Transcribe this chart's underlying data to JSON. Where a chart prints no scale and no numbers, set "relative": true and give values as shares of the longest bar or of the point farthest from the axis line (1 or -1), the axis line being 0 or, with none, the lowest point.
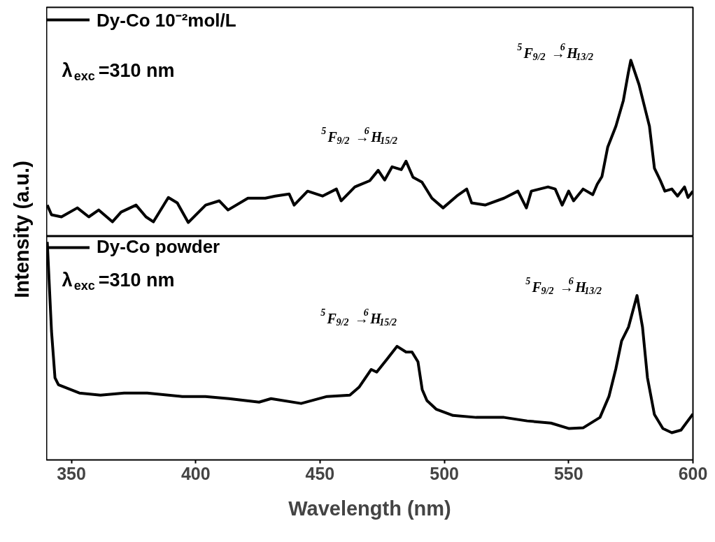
{
  "chart_data": [
    {
      "type": "line",
      "ylabel": "Intensity (a.u.)",
      "relative": true,
      "xlim": [
        340,
        600
      ],
      "tick_labels": false,
      "grid": false,
      "legend": "top left",
      "marker": "none",
      "line_style": "solid",
      "x": [
        340.3,
        342,
        346,
        352.4,
        357,
        361,
        366.5,
        370,
        376,
        380,
        383,
        389,
        392.6,
        397,
        404,
        409.5,
        413,
        421,
        428,
        432,
        437.6,
        439.6,
        445,
        451,
        456.6,
        458.5,
        464,
        470,
        473.4,
        476,
        479,
        482.7,
        484.6,
        487.4,
        491,
        495,
        499.5,
        505,
        509,
        511,
        516.4,
        524,
        529.6,
        533,
        535,
        541.7,
        544.6,
        547.4,
        550,
        552,
        555.8,
        559.7,
        561.5,
        563.4,
        565.7,
        569,
        572,
        574,
        575,
        578.3,
        581.1,
        582.5,
        584.5,
        586.8,
        588.7,
        591.5,
        593.8,
        596.6,
        598,
        600
      ],
      "series": [
        {
          "name": "Dy-Co 10⁻²mol/L",
          "color": "#000000",
          "values": [
            0.178,
            0.123,
            0.111,
            0.162,
            0.111,
            0.15,
            0.083,
            0.138,
            0.178,
            0.111,
            0.083,
            0.221,
            0.19,
            0.079,
            0.178,
            0.202,
            0.15,
            0.217,
            0.217,
            0.229,
            0.241,
            0.178,
            0.257,
            0.229,
            0.269,
            0.202,
            0.281,
            0.316,
            0.375,
            0.32,
            0.395,
            0.379,
            0.427,
            0.336,
            0.308,
            0.217,
            0.162,
            0.229,
            0.269,
            0.19,
            0.178,
            0.217,
            0.257,
            0.162,
            0.257,
            0.281,
            0.269,
            0.178,
            0.257,
            0.202,
            0.269,
            0.237,
            0.296,
            0.34,
            0.506,
            0.625,
            0.771,
            0.929,
            1.0,
            0.862,
            0.704,
            0.625,
            0.387,
            0.32,
            0.257,
            0.269,
            0.229,
            0.281,
            0.221,
            0.257
          ]
        }
      ],
      "annotations": [
        "λ$_{exc}$=310 nm",
        "$^{5}$F$_{9/2}$→$^{6}$H$_{15/2}$",
        "$^{5}$F$_{9/2}$→$^{6}$H$_{13/2}$"
      ]
    },
    {
      "type": "line",
      "xlabel": "Wavelength (nm)",
      "relative": true,
      "xlim": [
        340,
        600
      ],
      "xticks": [
        350,
        400,
        450,
        500,
        550,
        600
      ],
      "tick_labels": "x",
      "grid": false,
      "legend": "top left",
      "marker": "none",
      "line_style": "solid",
      "x": [
        340.3,
        342,
        343.4,
        344.8,
        353.2,
        361.7,
        371.2,
        380.5,
        394.6,
        403.9,
        413.4,
        425.5,
        430.3,
        442.4,
        452.8,
        462,
        465.8,
        470.6,
        472.8,
        477,
        481,
        484.6,
        487,
        489.4,
        491.1,
        493,
        496.7,
        503.5,
        512.8,
        524,
        533.3,
        542.9,
        550.2,
        555.8,
        562.6,
        566.2,
        569,
        571.3,
        574.1,
        577.5,
        579.7,
        581.7,
        584.5,
        587.9,
        591.5,
        595.2,
        600
      ],
      "series": [
        {
          "name": "Dy-Co powder",
          "color": "#000000",
          "values": [
            1.0,
            0.591,
            0.377,
            0.345,
            0.307,
            0.297,
            0.307,
            0.307,
            0.291,
            0.291,
            0.281,
            0.265,
            0.281,
            0.259,
            0.291,
            0.297,
            0.335,
            0.415,
            0.403,
            0.463,
            0.521,
            0.495,
            0.495,
            0.45,
            0.323,
            0.272,
            0.233,
            0.204,
            0.195,
            0.195,
            0.179,
            0.169,
            0.144,
            0.147,
            0.195,
            0.291,
            0.419,
            0.546,
            0.61,
            0.754,
            0.61,
            0.377,
            0.208,
            0.144,
            0.125,
            0.137,
            0.211
          ]
        }
      ],
      "annotations": [
        "λ$_{exc}$=310 nm",
        "$^{5}$F$_{9/2}$→$^{6}$H$_{15/2}$",
        "$^{5}$F$_{9/2}$→$^{6}$H$_{13/2}$"
      ]
    }
  ]
}
